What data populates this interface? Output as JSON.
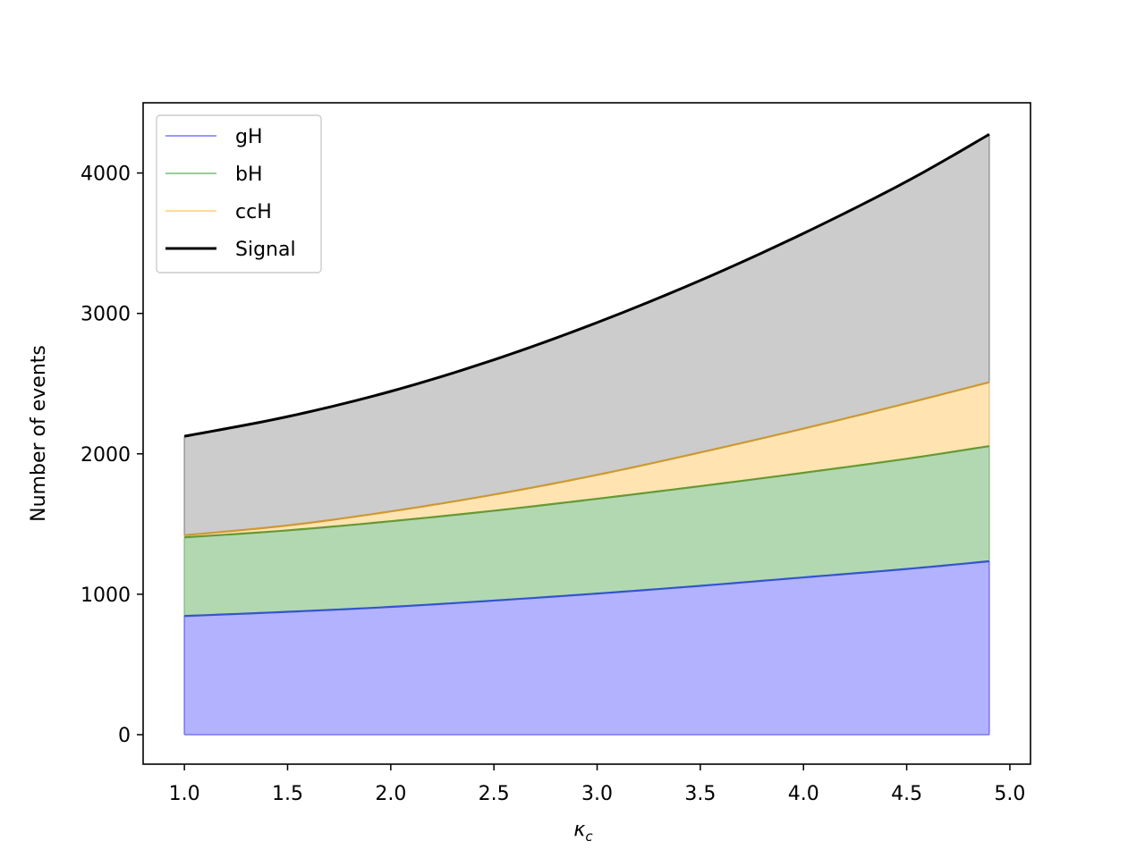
{
  "chart_data": {
    "type": "area",
    "stacked": true,
    "xlabel": "κ",
    "xlabel_subscript": "c",
    "ylabel": "Number of events",
    "xlim": [
      0.8,
      5.1
    ],
    "ylim": [
      -210,
      4500
    ],
    "xticks": [
      "1.0",
      "1.5",
      "2.0",
      "2.5",
      "3.0",
      "3.5",
      "4.0",
      "4.5",
      "5.0"
    ],
    "yticks": [
      "0",
      "1000",
      "2000",
      "3000",
      "4000"
    ],
    "grid": false,
    "legend_position": "top-left",
    "x": [
      1.0,
      1.5,
      2.0,
      2.5,
      3.0,
      3.5,
      4.0,
      4.5,
      4.9
    ],
    "series": [
      {
        "name": "gH",
        "color": "#0000ff",
        "cumulative": [
          845,
          875,
          910,
          955,
          1005,
          1060,
          1120,
          1180,
          1235
        ]
      },
      {
        "name": "bH",
        "color": "#008000",
        "cumulative": [
          1405,
          1455,
          1520,
          1595,
          1680,
          1770,
          1865,
          1965,
          2055
        ]
      },
      {
        "name": "ccH",
        "color": "#ffa500",
        "cumulative": [
          1420,
          1490,
          1590,
          1710,
          1850,
          2010,
          2180,
          2360,
          2510
        ]
      },
      {
        "name": "Signal",
        "color": "#000000",
        "cumulative": [
          2125,
          2265,
          2445,
          2670,
          2935,
          3235,
          3570,
          3940,
          4275
        ]
      }
    ]
  }
}
